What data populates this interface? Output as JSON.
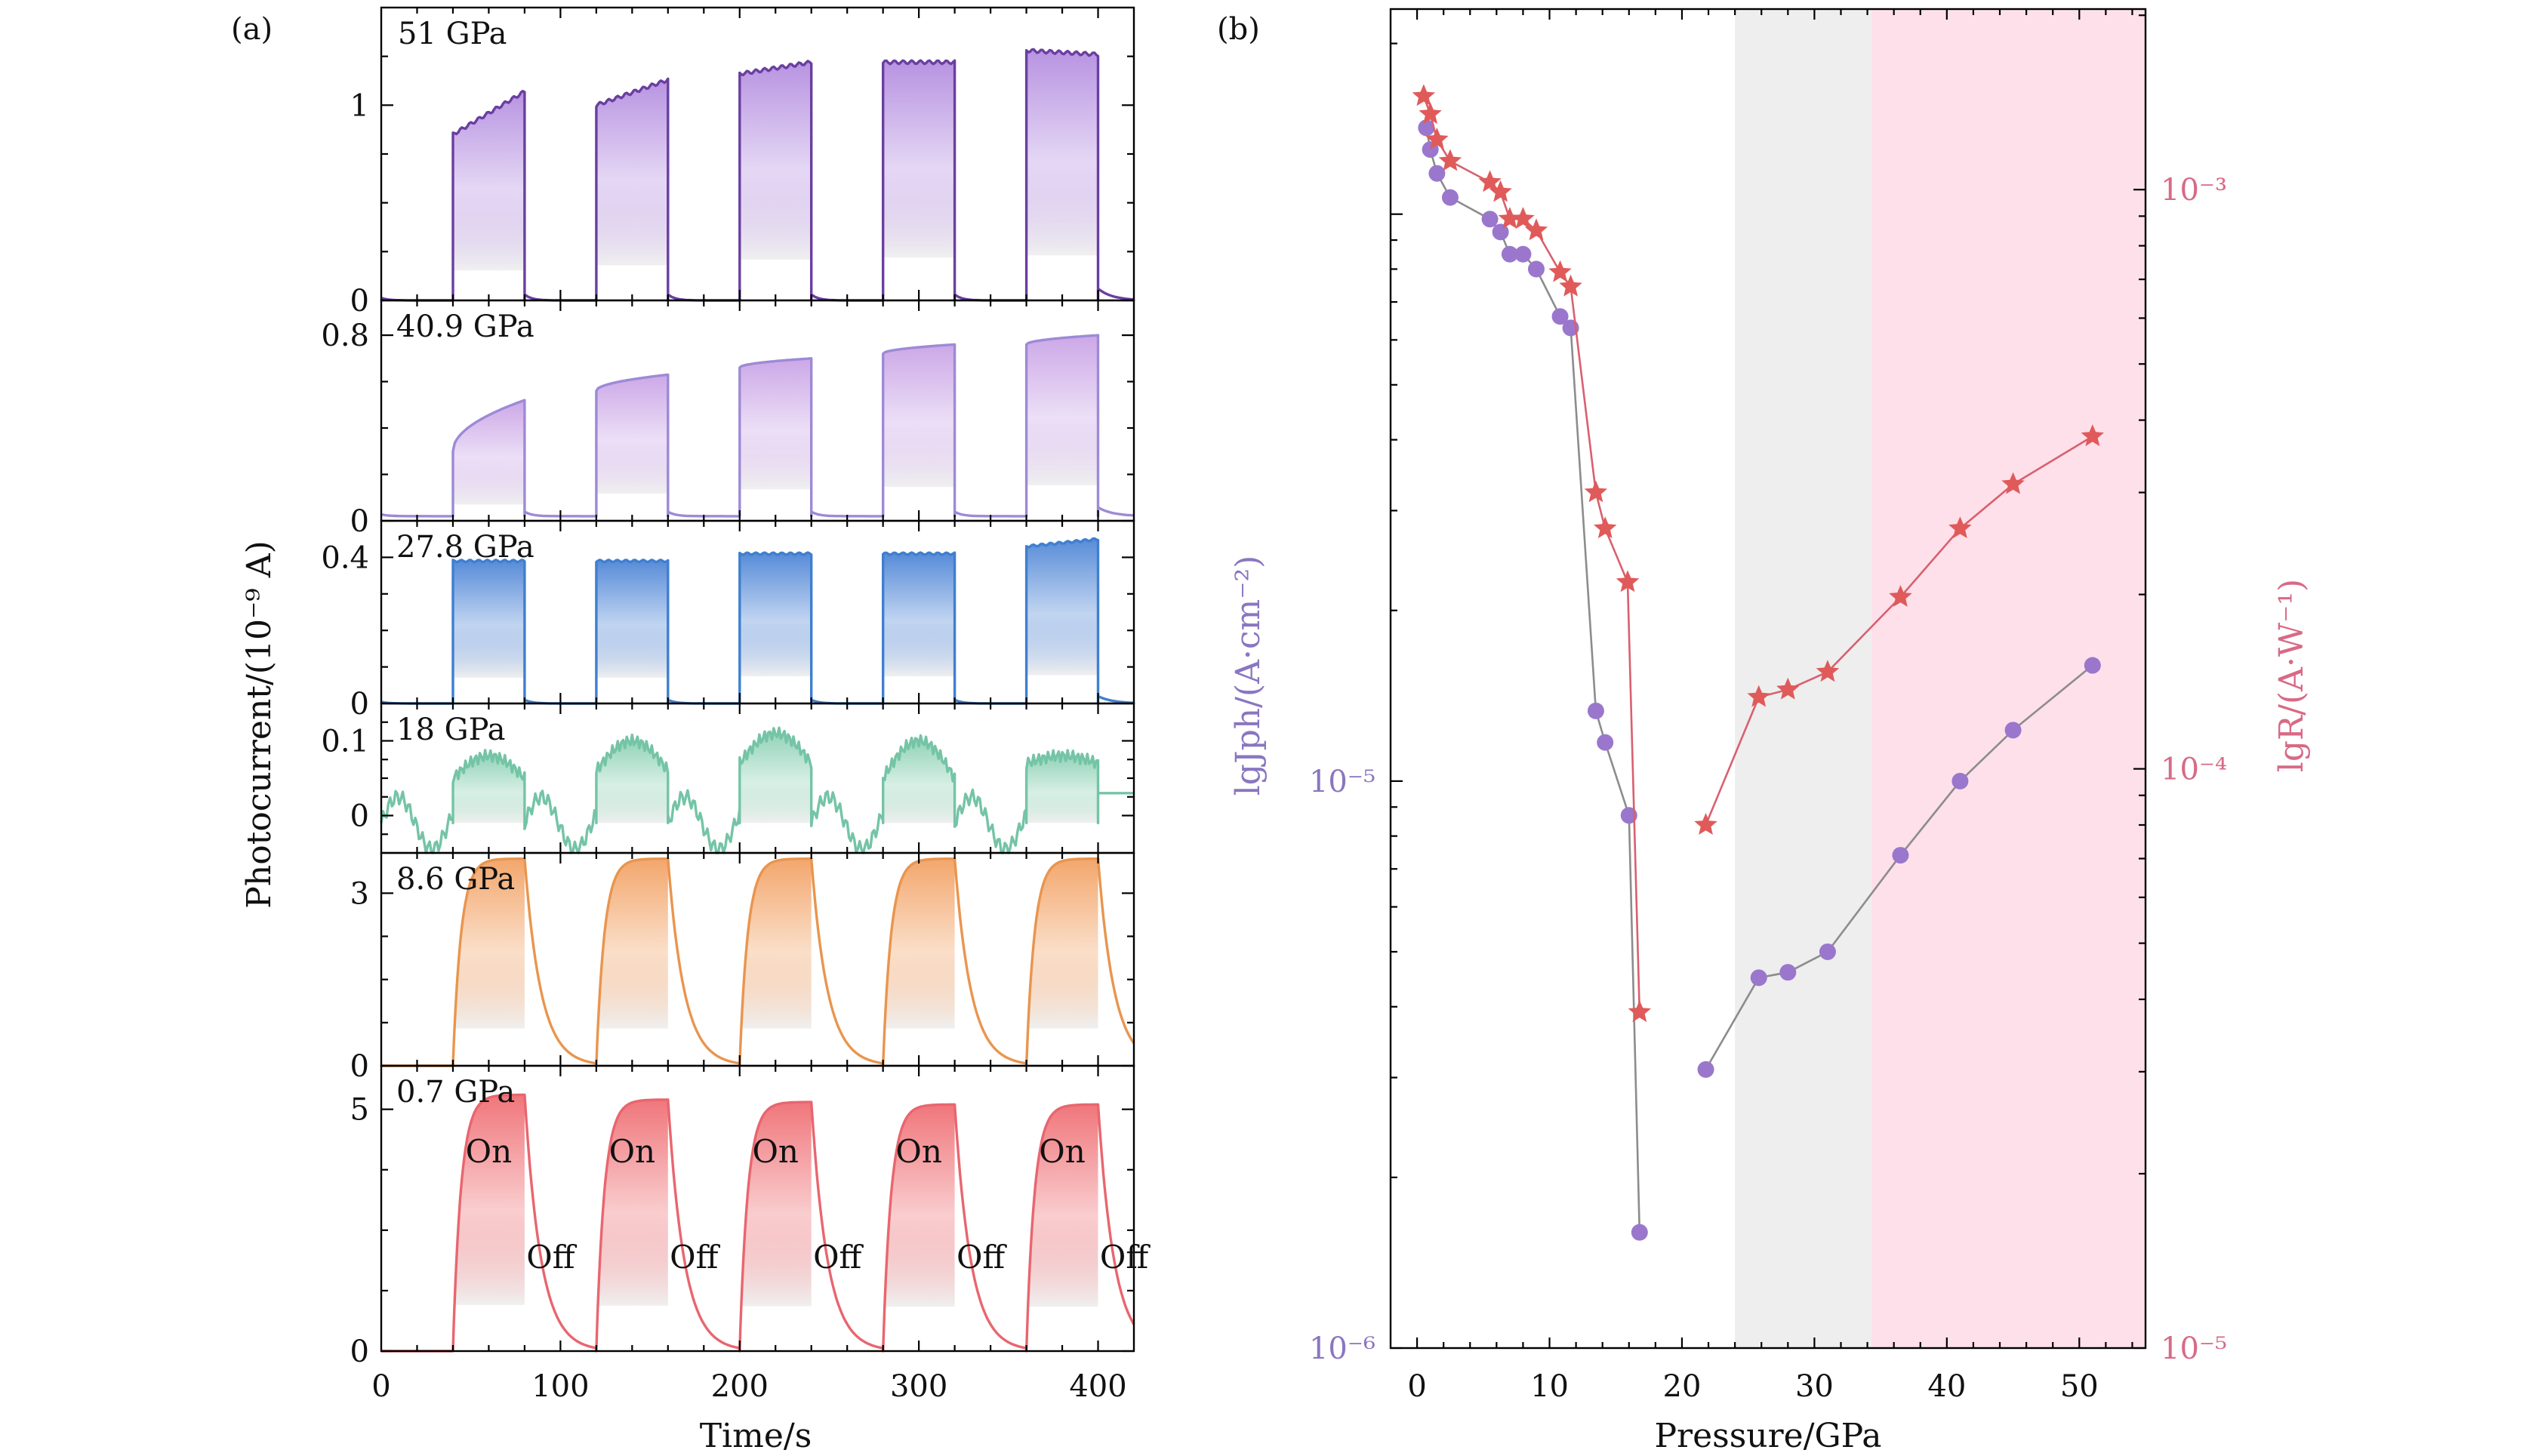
{
  "chart_data": [
    {
      "type": "line",
      "panel_label": "(a)",
      "xlabel": "Time/s",
      "ylabel": "Photocurrent/(10⁻⁹ A)",
      "x_ticks": [
        "0",
        "100",
        "200",
        "300",
        "400"
      ],
      "xlim": [
        0,
        420
      ],
      "on_periods_s": [
        [
          40,
          80
        ],
        [
          120,
          160
        ],
        [
          200,
          240
        ],
        [
          280,
          320
        ],
        [
          360,
          400
        ]
      ],
      "on_label": "On",
      "off_label": "Off",
      "subplots": [
        {
          "pressure": "51 GPa",
          "color": "#6a3fa0",
          "fill": "#b48ee0",
          "ylim": [
            0,
            1.5
          ],
          "yticks": [
            0,
            1
          ],
          "ytick_labels": [
            "0",
            "1"
          ],
          "baseline": 0.0,
          "on_start": [
            0.85,
            1.0,
            1.16,
            1.22,
            1.28
          ],
          "on_end": [
            1.07,
            1.13,
            1.22,
            1.22,
            1.26
          ],
          "shape": "step"
        },
        {
          "pressure": "40.9 GPa",
          "color": "#9d8ad6",
          "fill": "#c9a3e6",
          "ylim": [
            0,
            0.95
          ],
          "yticks": [
            0,
            0.8
          ],
          "ytick_labels": [
            "0",
            "0.8"
          ],
          "baseline": 0.02,
          "on_start": [
            0.3,
            0.56,
            0.66,
            0.72,
            0.76
          ],
          "on_end": [
            0.52,
            0.63,
            0.7,
            0.76,
            0.8
          ],
          "shape": "ramp"
        },
        {
          "pressure": "27.8 GPa",
          "color": "#3f7fd0",
          "fill": "#4f86d6",
          "ylim": [
            0,
            0.5
          ],
          "yticks": [
            0,
            0.4
          ],
          "ytick_labels": [
            "0",
            "0.4"
          ],
          "baseline": 0.0,
          "on_start": [
            0.39,
            0.39,
            0.41,
            0.41,
            0.43
          ],
          "on_end": [
            0.39,
            0.39,
            0.41,
            0.41,
            0.45
          ],
          "shape": "step"
        },
        {
          "pressure": "18 GPa",
          "color": "#74c4a6",
          "fill": "#8fd2b6",
          "ylim": [
            -0.05,
            0.15
          ],
          "yticks": [
            0,
            0.1
          ],
          "ytick_labels": [
            "0",
            "0.1"
          ],
          "baseline": -0.01,
          "on_start": [
            0.05,
            0.06,
            0.07,
            0.05,
            0.07
          ],
          "on_end": [
            0.08,
            0.1,
            0.11,
            0.1,
            0.08
          ],
          "shape": "noisy"
        },
        {
          "pressure": "8.6 GPa",
          "color": "#e9954e",
          "fill": "#f2a265",
          "ylim": [
            0,
            3.7
          ],
          "yticks": [
            0,
            3
          ],
          "ytick_labels": [
            "0",
            "3"
          ],
          "baseline": 0.0,
          "on_start": [
            3.6,
            3.6,
            3.6,
            3.6,
            3.6
          ],
          "on_end": [
            3.6,
            3.6,
            3.6,
            3.6,
            3.6
          ],
          "shape": "rc"
        },
        {
          "pressure": "0.7 GPa",
          "color": "#e8666f",
          "fill": "#ef6f74",
          "ylim": [
            0,
            5.9
          ],
          "yticks": [
            0,
            5
          ],
          "ytick_labels": [
            "0",
            "5"
          ],
          "baseline": 0.0,
          "on_start": [
            5.3,
            5.2,
            5.15,
            5.1,
            5.1
          ],
          "on_end": [
            5.3,
            5.2,
            5.15,
            5.1,
            5.1
          ],
          "shape": "rc"
        }
      ]
    },
    {
      "type": "scatter",
      "panel_label": "(b)",
      "xlabel": "Pressure/GPa",
      "x_ticks": [
        "0",
        "10",
        "20",
        "30",
        "40",
        "50"
      ],
      "xlim": [
        -2,
        55
      ],
      "shaded_regions": [
        {
          "from": 24,
          "to": 34.3,
          "color": "#eeeeee"
        },
        {
          "from": 34.3,
          "to": 55,
          "color": "#fde0ea"
        }
      ],
      "left_axis": {
        "label": "lgJph/(A·cm⁻²)",
        "color": "#8a76c0",
        "scale": "log",
        "ylim": [
          1e-06,
          0.00023
        ],
        "tick_labels": [
          "10⁻⁶",
          "10⁻⁵"
        ]
      },
      "right_axis": {
        "label": "lgR/(A·W⁻¹)",
        "color": "#d86a86",
        "scale": "log",
        "ylim": [
          1e-05,
          0.00205
        ],
        "tick_labels": [
          "10⁻⁵",
          "10⁻⁴",
          "10⁻³"
        ]
      },
      "series": [
        {
          "name": "Jph",
          "axis": "left",
          "marker": "circle",
          "color": "#9a77cc",
          "line_color": "#8c8c8c",
          "segments": [
            [
              [
                0.7,
                0.000142
              ],
              [
                1.0,
                0.00013
              ],
              [
                1.5,
                0.000118
              ],
              [
                2.5,
                0.000107
              ],
              [
                5.5,
                9.8e-05
              ],
              [
                6.3,
                9.3e-05
              ],
              [
                7.0,
                8.5e-05
              ],
              [
                8.0,
                8.5e-05
              ],
              [
                9.0,
                8e-05
              ],
              [
                10.8,
                6.6e-05
              ],
              [
                11.6,
                6.3e-05
              ],
              [
                13.5,
                1.33e-05
              ],
              [
                14.2,
                1.17e-05
              ],
              [
                16.0,
                8.7e-06
              ],
              [
                16.8,
                1.6e-06
              ]
            ],
            [
              [
                21.8,
                3.1e-06
              ],
              [
                25.8,
                4.5e-06
              ],
              [
                28.0,
                4.6e-06
              ],
              [
                31.0,
                5e-06
              ],
              [
                36.5,
                7.4e-06
              ],
              [
                41.0,
                1e-05
              ],
              [
                45.0,
                1.23e-05
              ],
              [
                51.0,
                1.6e-05
              ]
            ]
          ]
        },
        {
          "name": "R",
          "axis": "right",
          "marker": "star",
          "color": "#e05a5a",
          "line_color": "#d86070",
          "segments": [
            [
              [
                0.5,
                0.00145
              ],
              [
                1.0,
                0.00135
              ],
              [
                1.5,
                0.00122
              ],
              [
                2.5,
                0.00112
              ],
              [
                5.5,
                0.00103
              ],
              [
                6.3,
                0.00099
              ],
              [
                7.0,
                0.00089
              ],
              [
                8.0,
                0.00089
              ],
              [
                9.0,
                0.00085
              ],
              [
                10.8,
                0.00072
              ],
              [
                11.6,
                0.00068
              ],
              [
                13.5,
                0.0003
              ],
              [
                14.2,
                0.00026
              ],
              [
                15.9,
                0.00021
              ],
              [
                16.8,
                3.8e-05
              ]
            ],
            [
              [
                21.8,
                8e-05
              ],
              [
                25.8,
                0.000133
              ],
              [
                28.0,
                0.000137
              ],
              [
                31.0,
                0.000147
              ],
              [
                36.5,
                0.000198
              ],
              [
                41.0,
                0.00026
              ],
              [
                45.0,
                0.00031
              ],
              [
                51.0,
                0.000375
              ]
            ]
          ]
        }
      ]
    }
  ]
}
